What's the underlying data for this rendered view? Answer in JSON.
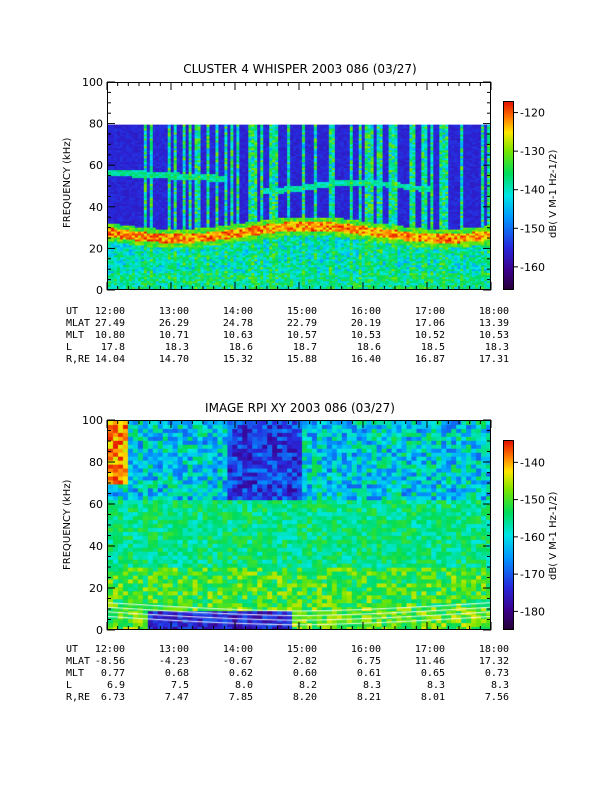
{
  "panels": [
    {
      "title": "CLUSTER 4 WHISPER 2003 086 (03/27)",
      "ylabel": "FREQUENCY (kHz)",
      "colorbar_label": "dB( V M⁻¹ Hz⁻¹ᐟ²)",
      "colorbar_label_text": "dB( V M-1 Hz-1/2)",
      "chart_data": {
        "type": "heatmap",
        "title": "CLUSTER 4 WHISPER 2003 086 (03/27)",
        "ylabel": "FREQUENCY (kHz)",
        "xlim": [
          "12:00",
          "18:00"
        ],
        "ylim": [
          0,
          100
        ],
        "x_ticks": [
          "12:00",
          "13:00",
          "14:00",
          "15:00",
          "16:00",
          "17:00",
          "18:00"
        ],
        "y_ticks": [
          "0",
          "20",
          "40",
          "60",
          "80",
          "100"
        ],
        "data_max_frequency_khz": 80,
        "color_range_db": [
          -166,
          -117
        ],
        "colorbar_ticks": [
          "-120",
          "-130",
          "-140",
          "-150",
          "-160"
        ],
        "features": [
          {
            "name": "strong emission band",
            "freq_khz": 28,
            "level_db": -120
          },
          {
            "name": "upper band early",
            "freq_khz": 56,
            "time_range": [
              "12:00",
              "13:50"
            ]
          },
          {
            "name": "upper band late",
            "freq_khz": 51,
            "time_range": [
              "14:30",
              "17:00"
            ]
          }
        ]
      },
      "ephemeris": {
        "rows": [
          {
            "name": "UT",
            "values": [
              "12:00",
              "13:00",
              "14:00",
              "15:00",
              "16:00",
              "17:00",
              "18:00"
            ]
          },
          {
            "name": "MLAT",
            "values": [
              "27.49",
              "26.29",
              "24.78",
              "22.79",
              "20.19",
              "17.06",
              "13.39"
            ]
          },
          {
            "name": "MLT",
            "values": [
              "10.80",
              "10.71",
              "10.63",
              "10.57",
              "10.53",
              "10.52",
              "10.53"
            ]
          },
          {
            "name": "L",
            "values": [
              "17.8",
              "18.3",
              "18.6",
              "18.7",
              "18.6",
              "18.5",
              "18.3"
            ]
          },
          {
            "name": "R,RE",
            "values": [
              "14.04",
              "14.70",
              "15.32",
              "15.88",
              "16.40",
              "16.87",
              "17.31"
            ]
          }
        ]
      }
    },
    {
      "title": "IMAGE RPI XY 2003 086 (03/27)",
      "ylabel": "FREQUENCY (kHz)",
      "colorbar_label_text": "dB( V M-1 Hz-1/2)",
      "chart_data": {
        "type": "heatmap",
        "title": "IMAGE RPI XY 2003 086 (03/27)",
        "ylabel": "FREQUENCY (kHz)",
        "xlim": [
          "12:00",
          "18:00"
        ],
        "ylim": [
          0,
          100
        ],
        "x_ticks": [
          "12:00",
          "13:00",
          "14:00",
          "15:00",
          "16:00",
          "17:00",
          "18:00"
        ],
        "y_ticks": [
          "0",
          "20",
          "40",
          "60",
          "80",
          "100"
        ],
        "color_range_db": [
          -185,
          -134
        ],
        "colorbar_ticks": [
          "-140",
          "-150",
          "-160",
          "-170",
          "-180"
        ],
        "features": [
          {
            "name": "broadband noise",
            "freq_range_khz": [
              10,
              100
            ]
          },
          {
            "name": "white swept traces",
            "freq_range_khz": [
              0,
              10
            ]
          }
        ]
      },
      "ephemeris": {
        "rows": [
          {
            "name": "UT",
            "values": [
              "12:00",
              "13:00",
              "14:00",
              "15:00",
              "16:00",
              "17:00",
              "18:00"
            ]
          },
          {
            "name": "MLAT",
            "values": [
              "-8.56",
              "-4.23",
              "-0.67",
              "2.82",
              "6.75",
              "11.46",
              "17.32"
            ]
          },
          {
            "name": "MLT",
            "values": [
              "0.77",
              "0.68",
              "0.62",
              "0.60",
              "0.61",
              "0.65",
              "0.73"
            ]
          },
          {
            "name": "L",
            "values": [
              "6.9",
              "7.5",
              "8.0",
              "8.2",
              "8.3",
              "8.3",
              "8.3"
            ]
          },
          {
            "name": "R,RE",
            "values": [
              "6.73",
              "7.47",
              "7.85",
              "8.20",
              "8.21",
              "8.01",
              "7.56"
            ]
          }
        ]
      }
    }
  ]
}
